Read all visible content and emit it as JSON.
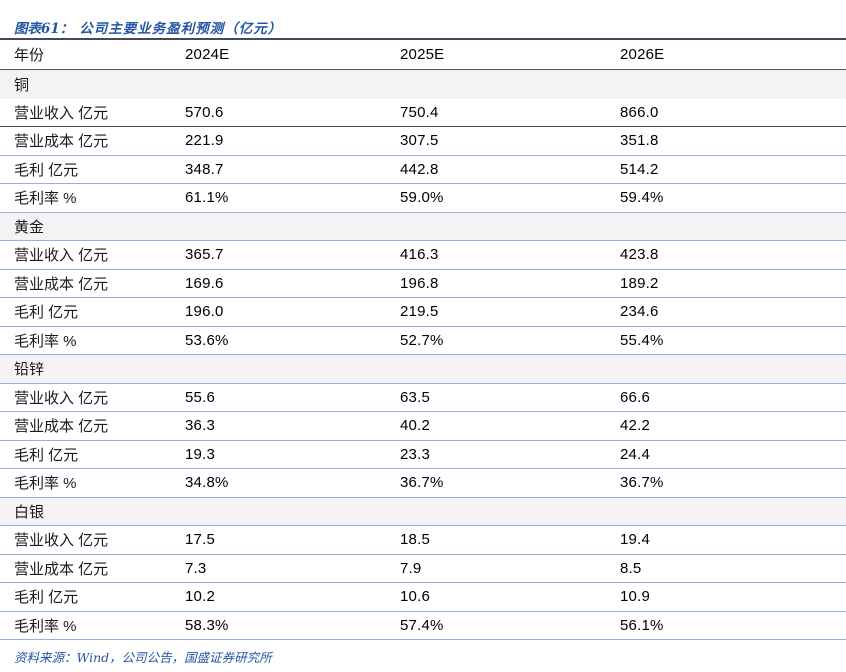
{
  "title": {
    "prefix": "图表61：",
    "text": "公司主要业务盈利预测（亿元）"
  },
  "source": "资料来源：Wind，公司公告，国盛证券研究所",
  "colors": {
    "accent_blue_text": "#2456a4",
    "row_separator_blue": "#95b3d7",
    "dark_rule": "#3f4a5c",
    "section_band_gray": "#f3f3f3"
  },
  "table": {
    "columns": [
      "年份",
      "2024E",
      "2025E",
      "2026E"
    ],
    "sections": [
      {
        "name": "铜",
        "rows": [
          {
            "label": "营业收入 亿元",
            "values": [
              "570.6",
              "750.4",
              "866.0"
            ]
          },
          {
            "label": "营业成本 亿元",
            "values": [
              "221.9",
              "307.5",
              "351.8"
            ]
          },
          {
            "label": "毛利 亿元",
            "values": [
              "348.7",
              "442.8",
              "514.2"
            ]
          },
          {
            "label": "毛利率 %",
            "values": [
              "61.1%",
              "59.0%",
              "59.4%"
            ]
          }
        ]
      },
      {
        "name": "黄金",
        "rows": [
          {
            "label": "营业收入 亿元",
            "values": [
              "365.7",
              "416.3",
              "423.8"
            ]
          },
          {
            "label": "营业成本 亿元",
            "values": [
              "169.6",
              "196.8",
              "189.2"
            ]
          },
          {
            "label": "毛利 亿元",
            "values": [
              "196.0",
              "219.5",
              "234.6"
            ]
          },
          {
            "label": "毛利率 %",
            "values": [
              "53.6%",
              "52.7%",
              "55.4%"
            ]
          }
        ]
      },
      {
        "name": "铅锌",
        "rows": [
          {
            "label": "营业收入 亿元",
            "values": [
              "55.6",
              "63.5",
              "66.6"
            ]
          },
          {
            "label": "营业成本 亿元",
            "values": [
              "36.3",
              "40.2",
              "42.2"
            ]
          },
          {
            "label": "毛利 亿元",
            "values": [
              "19.3",
              "23.3",
              "24.4"
            ]
          },
          {
            "label": "毛利率 %",
            "values": [
              "34.8%",
              "36.7%",
              "36.7%"
            ]
          }
        ]
      },
      {
        "name": "白银",
        "rows": [
          {
            "label": "营业收入 亿元",
            "values": [
              "17.5",
              "18.5",
              "19.4"
            ]
          },
          {
            "label": "营业成本 亿元",
            "values": [
              "7.3",
              "7.9",
              "8.5"
            ]
          },
          {
            "label": "毛利 亿元",
            "values": [
              "10.2",
              "10.6",
              "10.9"
            ]
          },
          {
            "label": "毛利率 %",
            "values": [
              "58.3%",
              "57.4%",
              "56.1%"
            ]
          }
        ]
      }
    ]
  },
  "chart_data": {
    "type": "table",
    "title": "图表61：公司主要业务盈利预测（亿元）",
    "columns": [
      "年份",
      "2024E",
      "2025E",
      "2026E"
    ],
    "rows": [
      [
        "铜",
        "",
        "",
        ""
      ],
      [
        "营业收入 亿元",
        "570.6",
        "750.4",
        "866.0"
      ],
      [
        "营业成本 亿元",
        "221.9",
        "307.5",
        "351.8"
      ],
      [
        "毛利 亿元",
        "348.7",
        "442.8",
        "514.2"
      ],
      [
        "毛利率 %",
        "61.1%",
        "59.0%",
        "59.4%"
      ],
      [
        "黄金",
        "",
        "",
        ""
      ],
      [
        "营业收入 亿元",
        "365.7",
        "416.3",
        "423.8"
      ],
      [
        "营业成本 亿元",
        "169.6",
        "196.8",
        "189.2"
      ],
      [
        "毛利 亿元",
        "196.0",
        "219.5",
        "234.6"
      ],
      [
        "毛利率 %",
        "53.6%",
        "52.7%",
        "55.4%"
      ],
      [
        "铅锌",
        "",
        "",
        ""
      ],
      [
        "营业收入 亿元",
        "55.6",
        "63.5",
        "66.6"
      ],
      [
        "营业成本 亿元",
        "36.3",
        "40.2",
        "42.2"
      ],
      [
        "毛利 亿元",
        "19.3",
        "23.3",
        "24.4"
      ],
      [
        "毛利率 %",
        "34.8%",
        "36.7%",
        "36.7%"
      ],
      [
        "白银",
        "",
        "",
        ""
      ],
      [
        "营业收入 亿元",
        "17.5",
        "18.5",
        "19.4"
      ],
      [
        "营业成本 亿元",
        "7.3",
        "7.9",
        "8.5"
      ],
      [
        "毛利 亿元",
        "10.2",
        "10.6",
        "10.9"
      ],
      [
        "毛利率 %",
        "58.3%",
        "57.4%",
        "56.1%"
      ]
    ],
    "source_note": "资料来源：Wind，公司公告，国盛证券研究所"
  }
}
